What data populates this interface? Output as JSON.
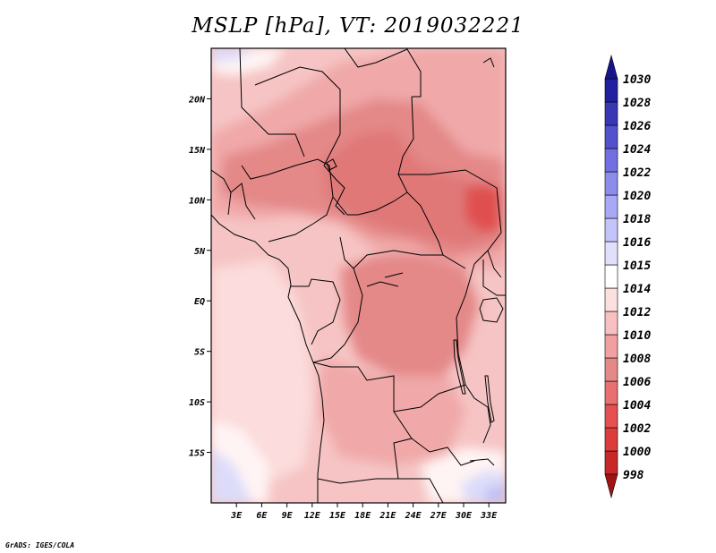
{
  "title": "MSLP [hPa], VT: 2019032221",
  "credit": "GrADS: IGES/COLA",
  "map": {
    "lon_range": [
      0,
      35
    ],
    "lat_range": [
      -20,
      25
    ],
    "x_ticks": [
      "3E",
      "6E",
      "9E",
      "12E",
      "15E",
      "18E",
      "21E",
      "24E",
      "27E",
      "30E",
      "33E"
    ],
    "x_tick_values": [
      3,
      6,
      9,
      12,
      15,
      18,
      21,
      24,
      27,
      30,
      33
    ],
    "y_ticks": [
      "20N",
      "15N",
      "10N",
      "5N",
      "EQ",
      "5S",
      "10S",
      "15S"
    ],
    "y_tick_values": [
      20,
      15,
      10,
      5,
      0,
      -5,
      -10,
      -15
    ]
  },
  "colorbar": {
    "levels": [
      "998",
      "1000",
      "1002",
      "1004",
      "1006",
      "1008",
      "1010",
      "1012",
      "1014",
      "1015",
      "1016",
      "1018",
      "1020",
      "1022",
      "1024",
      "1026",
      "1028",
      "1030"
    ],
    "colors": [
      "#b41e1e",
      "#c82828",
      "#dc3c3c",
      "#e65050",
      "#e87070",
      "#e48888",
      "#f0a0a0",
      "#f8c0c0",
      "#fce0e0",
      "#ffffff",
      "#e0e0fc",
      "#c4c4fa",
      "#a8a8f4",
      "#8c8cec",
      "#7070e0",
      "#5252cc",
      "#3838b4",
      "#2020a0"
    ],
    "top_arrow_color": "#16168c",
    "bottom_arrow_color": "#a01414"
  },
  "field_colors": {
    "base": "#f6c4c4",
    "light": "#fcdcdc",
    "mid": "#f0a8a8",
    "medium": "#eaa0a0",
    "dark": "#e48888",
    "darker": "#e07878",
    "deepest": "#e05050",
    "pale_white": "#fff4f4",
    "blue_light": "#dcdcfa",
    "blue_mid": "#c0c0f4"
  }
}
